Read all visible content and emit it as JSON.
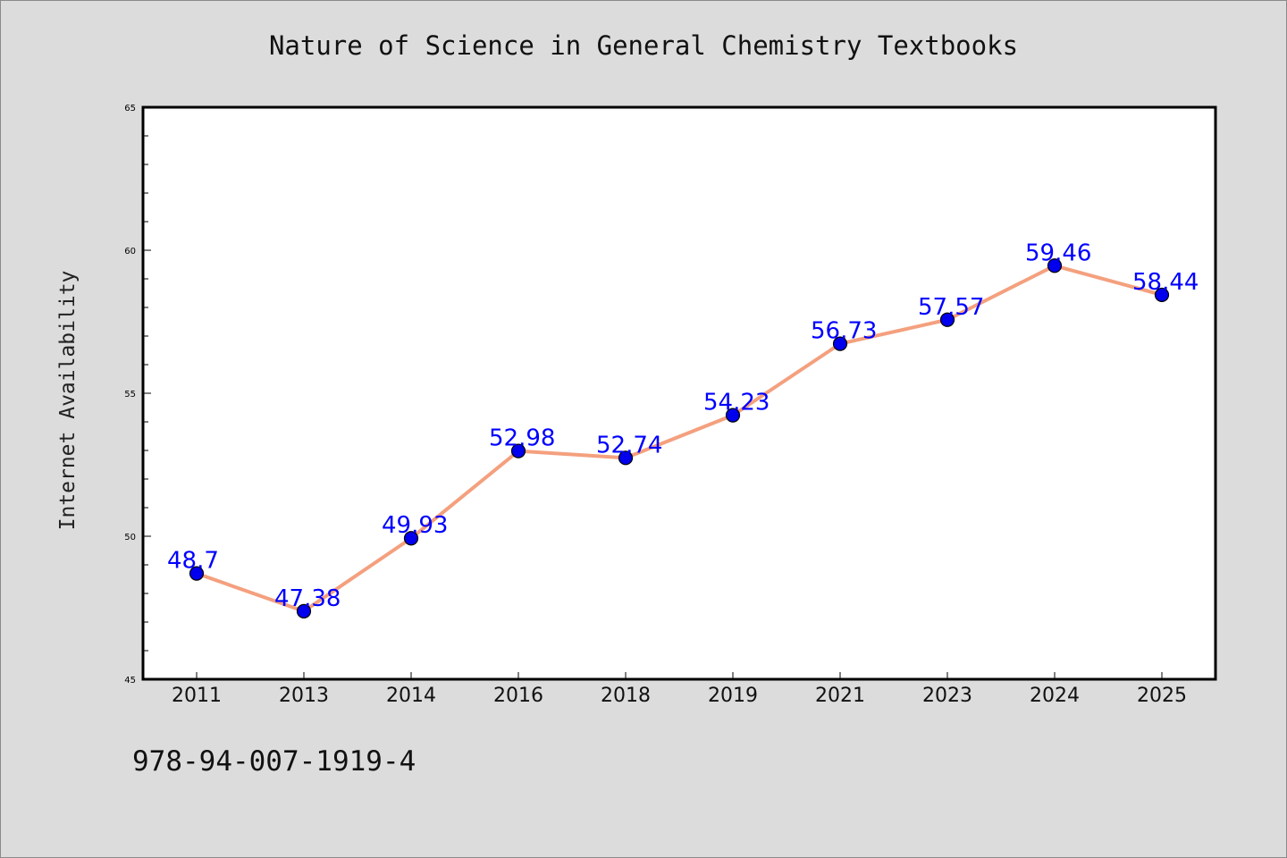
{
  "figure": {
    "id_text": "978-94-007-1919-4"
  },
  "chart_data": {
    "type": "line",
    "title": "Nature of Science in General Chemistry Textbooks",
    "xlabel": "",
    "ylabel": "Internet Availability",
    "categories": [
      "2011",
      "2013",
      "2014",
      "2016",
      "2018",
      "2019",
      "2021",
      "2023",
      "2024",
      "2025"
    ],
    "series": [
      {
        "values": [
          48.7,
          47.38,
          49.93,
          52.98,
          52.74,
          54.23,
          56.73,
          57.57,
          59.46,
          58.44
        ],
        "point_labels": [
          "48.7",
          "47.38",
          "49.93",
          "52.98",
          "52.74",
          "54.23",
          "56.73",
          "57.57",
          "59.46",
          "58.44"
        ]
      }
    ],
    "ylim": [
      45,
      65
    ],
    "yticks": [
      "45",
      "50",
      "55",
      "60",
      "65"
    ],
    "grid": false,
    "legend": "none",
    "colors": {
      "line": "#f4a07e",
      "marker": "#0000ee",
      "label": "#0000ff",
      "plot_background": "#ffffff",
      "figure_background": "#dcdcdc"
    }
  }
}
